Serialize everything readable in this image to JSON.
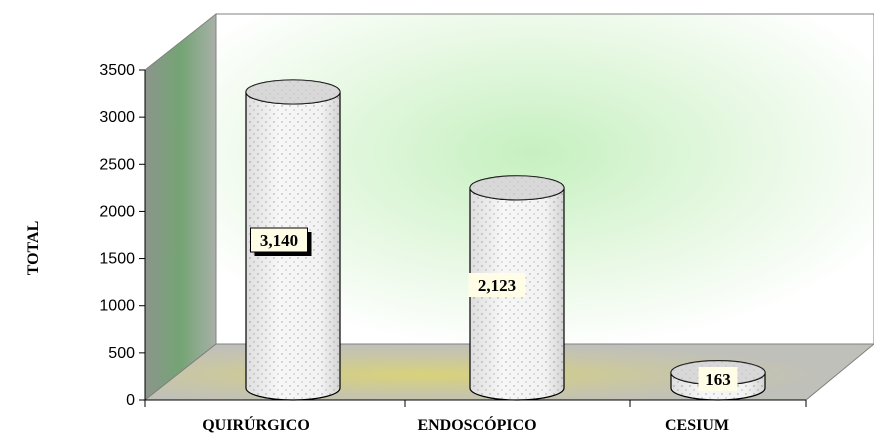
{
  "chart_data": {
    "type": "bar",
    "style": "3d-cylinder",
    "categories": [
      "QUIRÚRGICO",
      "ENDOSCÓPICO",
      "CESIUM"
    ],
    "values": [
      3140,
      2123,
      163
    ],
    "data_labels": [
      "3,140",
      "2,123",
      "163"
    ],
    "ylabel": "TOTAL",
    "xlabel": "",
    "ylim": [
      0,
      3500
    ],
    "yticks": [
      0,
      500,
      1000,
      1500,
      2000,
      2500,
      3000,
      3500
    ],
    "grid": false,
    "legend": "none",
    "colors": {
      "bar_fill": "#f4f4f4",
      "bar_dots": "#9a9a9a",
      "back_wall_glow": "#c9f2c4",
      "side_wall": "#9aa69a",
      "floor": "#c4c4bc",
      "floor_glow": "#d8d27a",
      "label_bg": "#fffde6"
    }
  }
}
